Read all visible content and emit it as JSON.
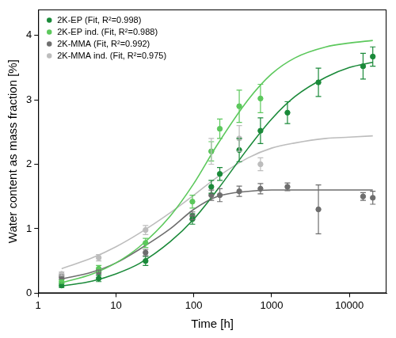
{
  "chart_data": {
    "type": "scatter",
    "x_label": "Time [h]",
    "y_label": "Water content as mass fraction [%]",
    "log": "x",
    "grid": false,
    "legend": "upper left",
    "marker": "circle",
    "line_style": "solid",
    "xlim": [
      1,
      30000
    ],
    "xticks": [
      1,
      10,
      100,
      1000,
      10000
    ],
    "ylim": [
      0,
      4.4
    ],
    "yticks": [
      0,
      1,
      2,
      3,
      4
    ],
    "series": [
      {
        "name": "2K-EP (Fit, R²=0.998)",
        "color": "#1b8a3a",
        "x": [
          2,
          6,
          24,
          96,
          168,
          216,
          384,
          720,
          1600,
          4000,
          15000,
          20000
        ],
        "values": [
          0.12,
          0.23,
          0.5,
          1.15,
          1.65,
          1.85,
          2.22,
          2.52,
          2.8,
          3.27,
          3.52,
          3.67
        ],
        "errors": [
          0.03,
          0.05,
          0.07,
          0.08,
          0.1,
          0.1,
          0.18,
          0.2,
          0.17,
          0.22,
          0.2,
          0.15
        ],
        "fit": {
          "x": [
            2,
            5,
            10,
            20,
            50,
            100,
            200,
            500,
            1000,
            2000,
            5000,
            10000,
            20000
          ],
          "values": [
            0.11,
            0.19,
            0.3,
            0.46,
            0.8,
            1.15,
            1.6,
            2.25,
            2.7,
            3.05,
            3.35,
            3.5,
            3.58
          ]
        }
      },
      {
        "name": "2K-EP ind. (Fit, R²=0.988)",
        "color": "#5cc85c",
        "x": [
          2,
          6,
          24,
          96,
          168,
          216,
          384,
          720
        ],
        "values": [
          0.18,
          0.38,
          0.78,
          1.42,
          2.2,
          2.55,
          2.9,
          3.02
        ],
        "errors": [
          0.03,
          0.05,
          0.07,
          0.1,
          0.15,
          0.15,
          0.25,
          0.22
        ],
        "fit": {
          "x": [
            2,
            5,
            10,
            20,
            50,
            100,
            200,
            500,
            1000,
            2000,
            5000,
            10000,
            20000
          ],
          "values": [
            0.16,
            0.3,
            0.47,
            0.72,
            1.2,
            1.7,
            2.3,
            3.0,
            3.4,
            3.65,
            3.82,
            3.88,
            3.92
          ]
        }
      },
      {
        "name": "2K-MMA (Fit, R²=0.992)",
        "color": "#6e6e6e",
        "x": [
          2,
          6,
          24,
          96,
          168,
          216,
          384,
          720,
          1600,
          4000,
          15000,
          20000
        ],
        "values": [
          0.25,
          0.33,
          0.63,
          1.2,
          1.52,
          1.52,
          1.58,
          1.62,
          1.65,
          1.3,
          1.5,
          1.48
        ],
        "errors": [
          0.03,
          0.03,
          0.05,
          0.06,
          0.08,
          0.1,
          0.08,
          0.08,
          0.06,
          0.38,
          0.06,
          0.1
        ],
        "fit": {
          "x": [
            2,
            5,
            10,
            20,
            50,
            100,
            200,
            500,
            1000,
            2000,
            5000,
            10000,
            20000
          ],
          "values": [
            0.22,
            0.33,
            0.47,
            0.68,
            1.0,
            1.3,
            1.5,
            1.58,
            1.6,
            1.6,
            1.6,
            1.6,
            1.6
          ]
        }
      },
      {
        "name": "2K-MMA ind. (Fit, R²=0.975)",
        "color": "#bdbdbd",
        "x": [
          2,
          6,
          24,
          168,
          384,
          720
        ],
        "values": [
          0.3,
          0.55,
          0.98,
          2.2,
          2.4,
          2.0
        ],
        "errors": [
          0.03,
          0.05,
          0.07,
          0.2,
          0.2,
          0.1
        ],
        "fit": {
          "x": [
            2,
            5,
            10,
            20,
            50,
            100,
            200,
            500,
            1000,
            2000,
            5000,
            10000,
            20000
          ],
          "values": [
            0.38,
            0.55,
            0.72,
            0.93,
            1.25,
            1.52,
            1.8,
            2.1,
            2.25,
            2.33,
            2.4,
            2.42,
            2.44
          ]
        }
      }
    ]
  }
}
